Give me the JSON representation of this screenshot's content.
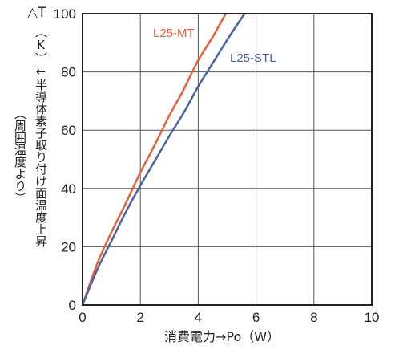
{
  "chart_data": {
    "type": "line",
    "xlabel": "消費電力→Po（W）",
    "ylabel_top": "△T",
    "ylabel_main": "（K）←半導体素子取り付け面温度上昇",
    "ylabel_sub": "（周囲温度より）",
    "xlim": [
      0,
      10
    ],
    "ylim": [
      0,
      100
    ],
    "xticks": [
      "0",
      "2",
      "4",
      "6",
      "8",
      "10"
    ],
    "yticks": [
      "0",
      "20",
      "40",
      "60",
      "80",
      "100"
    ],
    "grid": true,
    "series": [
      {
        "name": "L25-MT",
        "color": "#e8603a",
        "x": [
          0,
          0.5,
          1,
          1.5,
          2,
          2.5,
          3,
          3.5,
          4,
          4.5,
          4.95
        ],
        "y": [
          0,
          14,
          25,
          35,
          45.5,
          55,
          65,
          74,
          84,
          92,
          100
        ]
      },
      {
        "name": "L25-STL",
        "color": "#4a64a0",
        "x": [
          0,
          0.5,
          1,
          1.5,
          2,
          2.5,
          3,
          3.5,
          4,
          4.5,
          5,
          5.6
        ],
        "y": [
          0,
          12,
          22,
          32,
          41,
          49.5,
          58,
          66,
          75,
          83,
          91,
          100
        ]
      }
    ]
  }
}
